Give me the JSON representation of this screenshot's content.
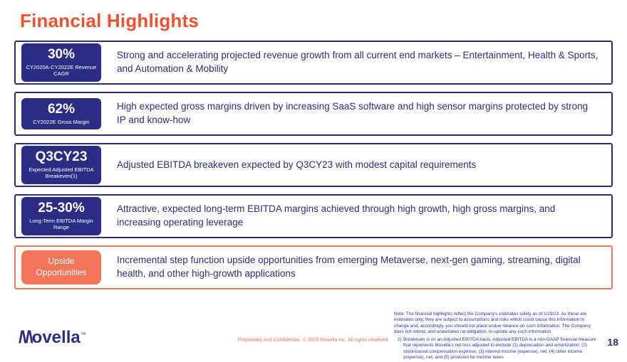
{
  "title": "Financial Highlights",
  "colors": {
    "navy": "#2B2D84",
    "coral": "#F4745A",
    "title_orange": "#F0512D",
    "note_blue": "#2733B0"
  },
  "rows": [
    {
      "badge_title": "30%",
      "badge_subtitle": "CY2020A-CY2022E Revenue CAGR",
      "description": "Strong and accelerating projected revenue growth from all current end markets – Entertainment, Health & Sports, and Automation & Mobility"
    },
    {
      "badge_title": "62%",
      "badge_subtitle": "CY2022E Gross Margin",
      "description": "High expected gross margins driven by increasing SaaS software and high sensor margins protected by strong IP and know-how"
    },
    {
      "badge_title": "Q3CY23",
      "badge_subtitle": "Expected Adjusted EBITDA Breakeven(1)",
      "description": "Adjusted EBITDA breakeven expected by Q3CY23 with modest capital requirements"
    },
    {
      "badge_title": "25-30%",
      "badge_subtitle": "Long-Term EBITDA Margin Range",
      "description": "Attractive, expected long-term EBITDA margins achieved through high growth, high gross margins, and increasing operating leverage"
    },
    {
      "badge_title": "Upside",
      "badge_subtitle": "Opportunities",
      "description": "Incremental step function upside opportunities from emerging Metaverse, next-gen gaming, streaming, digital health, and other high-growth applications"
    }
  ],
  "logo": {
    "m": "/\\/\\",
    "rest": "ovella",
    "tm": "™"
  },
  "footer": {
    "confidential": "Proprietary and Confidential. © 2023 Movella Inc. All rights reserved.",
    "note": "Note: The financial highlights reflect the Company's estimates solely as of 1/29/23. As these are estimates only, they are subject to assumptions and risks which could cause this information to change and, accordingly, you should not place undue reliance on such information. The Company does not intend, and undertakes no obligation, to update any such information",
    "footnote1_num": "1)",
    "footnote1_text": "Breakeven is on an Adjusted EBITDA basis. Adjusted EBITDA is a non-GAAP financial measure that represents Movella's net loss adjusted to exclude (1) depreciation and amortization; (2) stock-based compensation expense; (3) interest income (expense), net; (4) other income (expense), net; and (5) provision for income taxes",
    "page_number": "18"
  }
}
